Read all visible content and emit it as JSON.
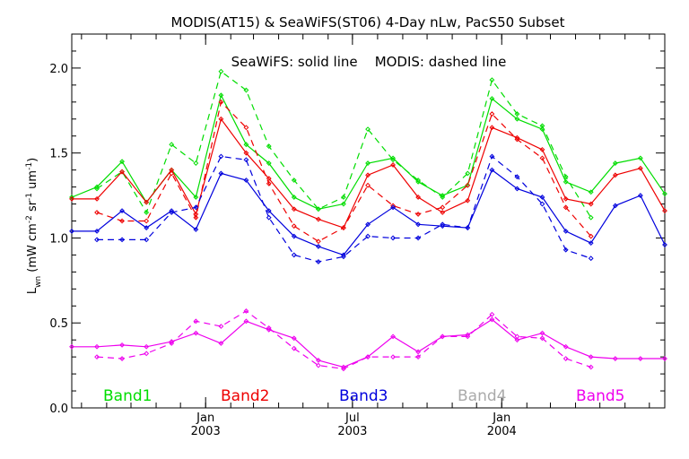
{
  "chart_data": {
    "type": "line",
    "title": "MODIS(AT15) & SeaWiFS(ST06) 4-Day nLw, PacS50 Subset",
    "annotation": "SeaWiFS: solid line    MODIS: dashed line",
    "ylabel": "L_wn (mW cm^-2 sr^-1 um^-1)",
    "ylabel_main": "L",
    "ylabel_sub": "wn",
    "ylabel_rest": " (mW cm",
    "ylabel_sup1": "-2",
    "ylabel_mid": " sr",
    "ylabel_sup2": "-1",
    "ylabel_mid2": " um",
    "ylabel_sup3": "-1",
    "ylabel_end": ")",
    "ylim": [
      0.0,
      2.2
    ],
    "yticks": [
      {
        "v": 0.0,
        "label": "0.0"
      },
      {
        "v": 0.5,
        "label": "0.5"
      },
      {
        "v": 1.0,
        "label": "1.0"
      },
      {
        "v": 1.5,
        "label": "1.5"
      },
      {
        "v": 2.0,
        "label": "2.0"
      }
    ],
    "xlim": [
      "2002-07-20",
      "2004-07-20"
    ],
    "xticks": [
      {
        "date": "2003-01-01",
        "month": "Jan",
        "year": "2003"
      },
      {
        "date": "2003-07-01",
        "month": "Jul",
        "year": "2003"
      },
      {
        "date": "2004-01-01",
        "month": "Jan",
        "year": "2004"
      }
    ],
    "x": [
      "2002-07-20",
      "2002-08-20",
      "2002-09-20",
      "2002-10-20",
      "2002-11-20",
      "2002-12-20",
      "2003-01-20",
      "2003-02-20",
      "2003-03-20",
      "2003-04-20",
      "2003-05-20",
      "2003-06-20",
      "2003-07-20",
      "2003-08-20",
      "2003-09-20",
      "2003-10-20",
      "2003-11-20",
      "2003-12-20",
      "2004-01-20",
      "2004-02-20",
      "2004-03-20",
      "2004-04-20",
      "2004-05-20",
      "2004-06-20",
      "2004-07-20"
    ],
    "series": [
      {
        "name": "Band1",
        "sensor": "SeaWiFS",
        "style": "solid",
        "color": "#00dd00",
        "values": [
          1.24,
          1.3,
          1.45,
          1.21,
          1.4,
          1.24,
          1.84,
          1.55,
          1.44,
          1.24,
          1.17,
          1.2,
          1.44,
          1.47,
          1.33,
          1.25,
          1.31,
          1.82,
          1.7,
          1.64,
          1.33,
          1.27,
          1.44,
          1.47,
          1.26
        ]
      },
      {
        "name": "Band1",
        "sensor": "MODIS",
        "style": "dashed",
        "color": "#00dd00",
        "values": [
          null,
          1.29,
          1.39,
          1.15,
          1.55,
          1.44,
          1.98,
          1.87,
          1.54,
          1.34,
          1.17,
          1.24,
          1.64,
          1.46,
          1.34,
          1.24,
          1.38,
          1.93,
          1.73,
          1.66,
          1.36,
          1.12,
          null,
          null,
          null
        ]
      },
      {
        "name": "Band2",
        "sensor": "SeaWiFS",
        "style": "solid",
        "color": "#ee0000",
        "values": [
          1.23,
          1.23,
          1.39,
          1.21,
          1.4,
          1.14,
          1.7,
          1.5,
          1.35,
          1.17,
          1.11,
          1.06,
          1.37,
          1.43,
          1.24,
          1.15,
          1.22,
          1.65,
          1.59,
          1.52,
          1.23,
          1.2,
          1.37,
          1.41,
          1.16
        ]
      },
      {
        "name": "Band2",
        "sensor": "MODIS",
        "style": "dashed",
        "color": "#ee0000",
        "values": [
          null,
          1.15,
          1.1,
          1.1,
          1.38,
          1.12,
          1.8,
          1.65,
          1.32,
          1.07,
          0.98,
          1.06,
          1.31,
          1.19,
          1.14,
          1.18,
          1.31,
          1.73,
          1.58,
          1.47,
          1.18,
          1.01,
          null,
          null,
          null
        ]
      },
      {
        "name": "Band3",
        "sensor": "SeaWiFS",
        "style": "solid",
        "color": "#0000dd",
        "values": [
          1.04,
          1.04,
          1.16,
          1.06,
          1.16,
          1.05,
          1.38,
          1.34,
          1.16,
          1.01,
          0.95,
          0.9,
          1.08,
          1.18,
          1.08,
          1.07,
          1.06,
          1.4,
          1.29,
          1.24,
          1.04,
          0.97,
          1.19,
          1.25,
          0.96
        ]
      },
      {
        "name": "Band3",
        "sensor": "MODIS",
        "style": "dashed",
        "color": "#0000dd",
        "values": [
          null,
          0.99,
          0.99,
          0.99,
          1.15,
          1.18,
          1.48,
          1.46,
          1.12,
          0.9,
          0.86,
          0.89,
          1.01,
          1.0,
          1.0,
          1.08,
          1.06,
          1.48,
          1.36,
          1.2,
          0.93,
          0.88,
          null,
          null,
          null
        ]
      },
      {
        "name": "Band5",
        "sensor": "SeaWiFS",
        "style": "solid",
        "color": "#ee00ee",
        "values": [
          0.36,
          0.36,
          0.37,
          0.36,
          0.39,
          0.44,
          0.38,
          0.51,
          0.46,
          0.41,
          0.28,
          0.24,
          0.3,
          0.42,
          0.33,
          0.42,
          0.43,
          0.52,
          0.4,
          0.44,
          0.36,
          0.3,
          0.29,
          0.29,
          0.29
        ]
      },
      {
        "name": "Band5",
        "sensor": "MODIS",
        "style": "dashed",
        "color": "#ee00ee",
        "values": [
          null,
          0.3,
          0.29,
          0.32,
          0.38,
          0.51,
          0.48,
          0.57,
          0.47,
          0.35,
          0.25,
          0.23,
          0.3,
          0.3,
          0.3,
          0.42,
          0.42,
          0.55,
          0.42,
          0.41,
          0.29,
          0.24,
          null,
          null,
          null
        ]
      }
    ],
    "legend": [
      {
        "label": "Band1",
        "color": "#00dd00"
      },
      {
        "label": "Band2",
        "color": "#ee0000"
      },
      {
        "label": "Band3",
        "color": "#0000dd"
      },
      {
        "label": "Band4",
        "color": "#aaaaaa"
      },
      {
        "label": "Band5",
        "color": "#ee00ee"
      }
    ],
    "legend_position": "bottom",
    "grid": false
  }
}
